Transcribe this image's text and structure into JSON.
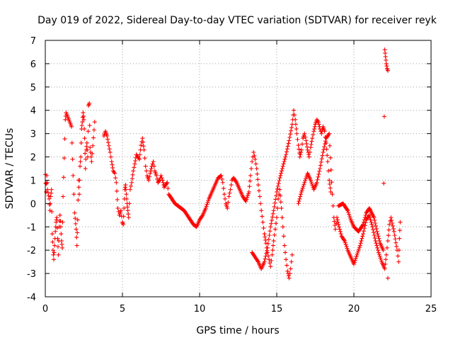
{
  "chart_data": {
    "type": "scatter",
    "title": "Day 019 of 2022, Sidereal Day-to-day VTEC variation (SDTVAR) for receiver reyk",
    "xlabel": "GPS time / hours",
    "ylabel": "SDTVAR / TECUs",
    "xlim": [
      0,
      25
    ],
    "ylim": [
      -4,
      7
    ],
    "xticks": [
      0,
      5,
      10,
      15,
      20,
      25
    ],
    "yticks": [
      -4,
      -3,
      -2,
      -1,
      0,
      1,
      2,
      3,
      4,
      5,
      6,
      7
    ],
    "grid": true,
    "marker": "+",
    "series": [
      {
        "name": "SDTVAR",
        "color": "#ff0000",
        "points": [
          [
            0.0,
            1.25
          ],
          [
            0.05,
            0.5
          ],
          [
            0.1,
            1.2
          ],
          [
            0.15,
            0.6
          ],
          [
            0.25,
            0.2
          ],
          [
            0.3,
            -0.3
          ],
          [
            0.35,
            0.3
          ],
          [
            0.4,
            0.6
          ],
          [
            0.45,
            -1.3
          ],
          [
            0.5,
            -2.0
          ],
          [
            0.55,
            -2.4
          ],
          [
            0.6,
            -1.8
          ],
          [
            0.65,
            -1.2
          ],
          [
            0.7,
            -0.8
          ],
          [
            0.75,
            -0.6
          ],
          [
            0.8,
            -1.5
          ],
          [
            0.85,
            -2.2
          ],
          [
            0.9,
            -1.0
          ],
          [
            0.95,
            -0.5
          ],
          [
            1.0,
            -1.0
          ],
          [
            1.05,
            -1.6
          ],
          [
            1.1,
            -1.9
          ],
          [
            1.15,
            0.3
          ],
          [
            1.3,
            3.6
          ],
          [
            1.35,
            3.9
          ],
          [
            1.7,
            3.3
          ],
          [
            1.8,
            1.2
          ],
          [
            1.9,
            -0.4
          ],
          [
            2.0,
            -1.1
          ],
          [
            2.05,
            -1.8
          ],
          [
            2.1,
            -0.7
          ],
          [
            2.15,
            1.0
          ],
          [
            2.2,
            0.4
          ],
          [
            2.25,
            1.6
          ],
          [
            2.3,
            2.0
          ],
          [
            2.35,
            3.2
          ],
          [
            2.4,
            3.5
          ],
          [
            2.45,
            3.9
          ],
          [
            2.5,
            3.6
          ],
          [
            2.55,
            2.8
          ],
          [
            2.6,
            1.5
          ],
          [
            2.65,
            2.3
          ],
          [
            2.7,
            2.6
          ],
          [
            2.75,
            2.0
          ],
          [
            2.8,
            4.2
          ],
          [
            2.85,
            4.3
          ],
          [
            2.9,
            2.4
          ],
          [
            3.0,
            1.8
          ],
          [
            3.2,
            3.5
          ],
          [
            3.8,
            2.9
          ],
          [
            3.9,
            3.1
          ],
          [
            4.0,
            2.9
          ],
          [
            4.2,
            2.2
          ],
          [
            4.3,
            1.8
          ],
          [
            4.4,
            1.4
          ],
          [
            4.5,
            1.3
          ],
          [
            4.6,
            0.9
          ],
          [
            4.7,
            -0.2
          ],
          [
            4.8,
            -0.5
          ],
          [
            4.9,
            -0.3
          ],
          [
            5.0,
            -0.8
          ],
          [
            5.05,
            -0.9
          ],
          [
            5.1,
            -0.2
          ],
          [
            5.15,
            0.6
          ],
          [
            5.2,
            0.8
          ],
          [
            5.25,
            0.4
          ],
          [
            5.3,
            0.0
          ],
          [
            5.35,
            -0.3
          ],
          [
            5.4,
            -0.6
          ],
          [
            5.5,
            0.6
          ],
          [
            5.6,
            0.9
          ],
          [
            5.7,
            1.4
          ],
          [
            5.8,
            1.7
          ],
          [
            5.9,
            2.1
          ],
          [
            6.0,
            2.0
          ],
          [
            6.1,
            1.9
          ],
          [
            6.2,
            2.5
          ],
          [
            6.3,
            2.8
          ],
          [
            6.4,
            2.3
          ],
          [
            6.5,
            1.6
          ],
          [
            6.6,
            1.2
          ],
          [
            6.7,
            1.0
          ],
          [
            6.8,
            1.3
          ],
          [
            6.9,
            1.6
          ],
          [
            7.0,
            1.8
          ],
          [
            7.1,
            1.4
          ],
          [
            7.2,
            1.2
          ],
          [
            7.3,
            0.9
          ],
          [
            7.4,
            1.0
          ],
          [
            7.5,
            1.2
          ],
          [
            7.6,
            1.0
          ],
          [
            7.7,
            0.7
          ],
          [
            7.8,
            0.8
          ],
          [
            7.9,
            0.9
          ],
          [
            8.0,
            0.4
          ],
          [
            8.2,
            0.2
          ],
          [
            8.4,
            0.0
          ],
          [
            8.6,
            -0.1
          ],
          [
            8.8,
            -0.2
          ],
          [
            9.0,
            -0.3
          ],
          [
            9.2,
            -0.5
          ],
          [
            9.4,
            -0.7
          ],
          [
            9.6,
            -0.9
          ],
          [
            9.8,
            -1.0
          ],
          [
            10.0,
            -0.7
          ],
          [
            10.2,
            -0.5
          ],
          [
            10.4,
            -0.2
          ],
          [
            10.6,
            0.2
          ],
          [
            10.8,
            0.5
          ],
          [
            11.0,
            0.8
          ],
          [
            11.2,
            1.1
          ],
          [
            11.4,
            1.2
          ],
          [
            11.5,
            0.9
          ],
          [
            11.6,
            0.4
          ],
          [
            11.7,
            0.0
          ],
          [
            11.8,
            -0.2
          ],
          [
            11.9,
            0.3
          ],
          [
            12.0,
            0.6
          ],
          [
            12.1,
            1.0
          ],
          [
            12.2,
            1.1
          ],
          [
            12.4,
            0.9
          ],
          [
            12.6,
            0.6
          ],
          [
            12.8,
            0.3
          ],
          [
            13.0,
            0.1
          ],
          [
            13.2,
            0.5
          ],
          [
            13.3,
            1.2
          ],
          [
            13.4,
            1.8
          ],
          [
            13.5,
            2.2
          ],
          [
            13.6,
            1.9
          ],
          [
            13.7,
            1.5
          ],
          [
            13.8,
            0.8
          ],
          [
            13.9,
            0.3
          ],
          [
            14.0,
            -0.3
          ],
          [
            14.1,
            -0.8
          ],
          [
            14.2,
            -1.3
          ],
          [
            14.3,
            -1.7
          ],
          [
            14.4,
            -2.1
          ],
          [
            14.5,
            -2.4
          ],
          [
            14.6,
            -2.7
          ],
          [
            14.7,
            -2.2
          ],
          [
            14.8,
            -1.6
          ],
          [
            14.9,
            -1.1
          ],
          [
            15.0,
            -0.6
          ],
          [
            15.1,
            0.2
          ],
          [
            15.2,
            0.6
          ],
          [
            15.3,
            -0.2
          ],
          [
            15.4,
            -1.0
          ],
          [
            15.5,
            -1.8
          ],
          [
            15.6,
            -2.4
          ],
          [
            15.7,
            -2.9
          ],
          [
            15.8,
            -3.2
          ],
          [
            15.9,
            -2.8
          ],
          [
            16.0,
            -2.2
          ],
          [
            13.4,
            -2.1
          ],
          [
            13.6,
            -2.3
          ],
          [
            13.8,
            -2.5
          ],
          [
            14.0,
            -2.8
          ],
          [
            14.2,
            -2.5
          ],
          [
            14.4,
            -1.9
          ],
          [
            14.6,
            -1.0
          ],
          [
            14.8,
            -0.3
          ],
          [
            15.0,
            0.5
          ],
          [
            15.2,
            1.1
          ],
          [
            15.4,
            1.6
          ],
          [
            15.6,
            2.1
          ],
          [
            15.8,
            2.7
          ],
          [
            16.0,
            3.4
          ],
          [
            16.1,
            4.0
          ],
          [
            16.2,
            3.6
          ],
          [
            16.3,
            3.0
          ],
          [
            16.4,
            2.5
          ],
          [
            16.5,
            2.0
          ],
          [
            16.6,
            2.3
          ],
          [
            16.7,
            2.8
          ],
          [
            16.8,
            3.0
          ],
          [
            16.9,
            2.7
          ],
          [
            17.0,
            2.3
          ],
          [
            17.1,
            2.0
          ],
          [
            17.2,
            2.4
          ],
          [
            17.3,
            2.8
          ],
          [
            17.4,
            3.1
          ],
          [
            17.5,
            3.4
          ],
          [
            17.6,
            3.6
          ],
          [
            17.7,
            3.5
          ],
          [
            17.8,
            3.2
          ],
          [
            17.9,
            3.0
          ],
          [
            18.0,
            3.3
          ],
          [
            18.1,
            3.1
          ],
          [
            18.2,
            2.6
          ],
          [
            18.3,
            1.8
          ],
          [
            18.4,
            1.0
          ],
          [
            18.5,
            0.5
          ],
          [
            16.4,
            0.0
          ],
          [
            16.6,
            0.5
          ],
          [
            16.8,
            0.9
          ],
          [
            17.0,
            1.3
          ],
          [
            17.2,
            1.0
          ],
          [
            17.4,
            0.6
          ],
          [
            17.6,
            0.9
          ],
          [
            17.8,
            1.5
          ],
          [
            18.0,
            2.2
          ],
          [
            18.2,
            2.8
          ],
          [
            18.4,
            3.0
          ],
          [
            18.6,
            0.4
          ],
          [
            18.7,
            -0.6
          ],
          [
            18.8,
            -1.1
          ],
          [
            18.9,
            -0.6
          ],
          [
            19.0,
            -0.9
          ],
          [
            19.2,
            -1.4
          ],
          [
            19.4,
            -1.6
          ],
          [
            19.6,
            -2.0
          ],
          [
            19.8,
            -2.3
          ],
          [
            20.0,
            -2.6
          ],
          [
            20.2,
            -2.2
          ],
          [
            20.4,
            -1.8
          ],
          [
            20.6,
            -1.3
          ],
          [
            20.8,
            -0.7
          ],
          [
            21.0,
            -0.5
          ],
          [
            21.2,
            -1.0
          ],
          [
            21.4,
            -1.6
          ],
          [
            21.6,
            -2.1
          ],
          [
            21.8,
            -2.5
          ],
          [
            22.0,
            -2.8
          ],
          [
            22.1,
            -2.2
          ],
          [
            22.2,
            -1.6
          ],
          [
            22.3,
            -0.9
          ],
          [
            22.4,
            -0.6
          ],
          [
            22.6,
            -1.2
          ],
          [
            22.8,
            -2.0
          ],
          [
            22.9,
            -2.5
          ],
          [
            22.95,
            -1.5
          ],
          [
            23.0,
            -0.8
          ],
          [
            19.0,
            -0.1
          ],
          [
            19.3,
            0.0
          ],
          [
            19.6,
            -0.3
          ],
          [
            19.8,
            -0.7
          ],
          [
            20.0,
            -1.0
          ],
          [
            20.3,
            -1.2
          ],
          [
            20.6,
            -0.9
          ],
          [
            20.8,
            -0.4
          ],
          [
            21.0,
            -0.2
          ],
          [
            21.3,
            -0.6
          ],
          [
            21.5,
            -1.2
          ],
          [
            21.7,
            -1.7
          ],
          [
            21.9,
            -2.0
          ],
          [
            22.0,
            6.6
          ],
          [
            22.05,
            6.3
          ],
          [
            22.1,
            6.0
          ],
          [
            22.15,
            5.8
          ],
          [
            22.2,
            5.7
          ],
          [
            22.2,
            -3.2
          ]
        ]
      }
    ]
  }
}
